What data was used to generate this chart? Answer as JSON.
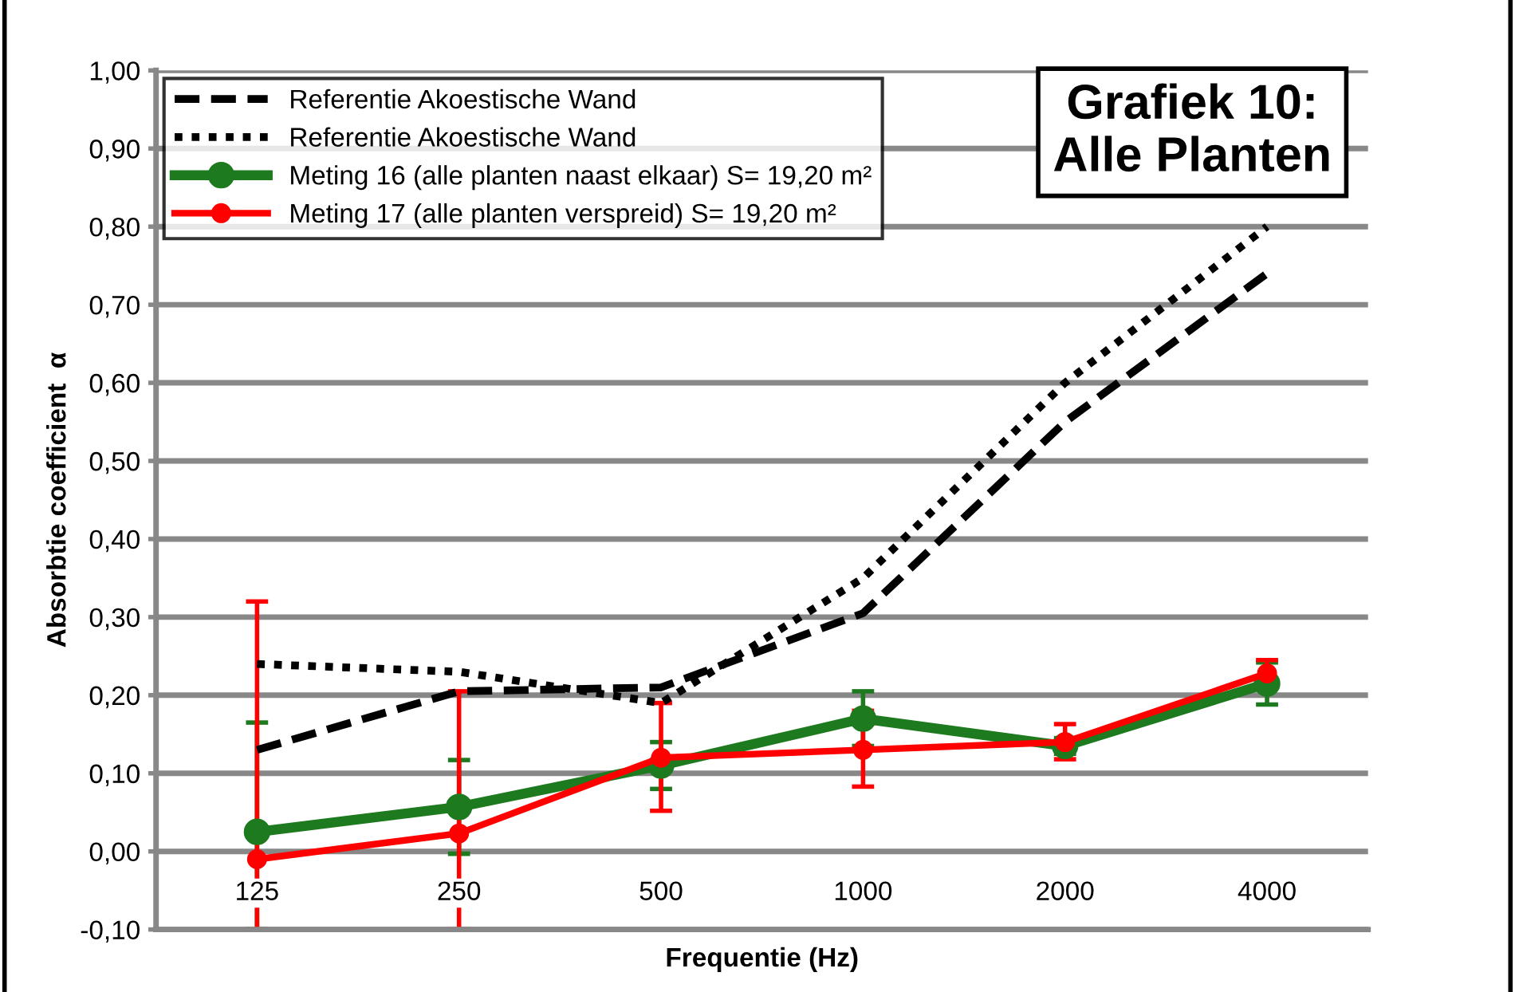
{
  "chart_data": {
    "type": "line",
    "title": "Grafiek 10:\nAlle Planten",
    "xlabel": "Frequentie (Hz)",
    "ylabel": "Absorbtie coefficient  α",
    "categories": [
      "125",
      "250",
      "500",
      "1000",
      "2000",
      "4000"
    ],
    "series": [
      {
        "name": "Referentie Akoestische Wand",
        "color": "#000000",
        "line_style": "dashed",
        "marker": "none",
        "values": [
          0.13,
          0.205,
          0.21,
          0.305,
          0.55,
          0.74
        ]
      },
      {
        "name": "Referentie Akoestische Wand",
        "color": "#000000",
        "line_style": "dotted",
        "marker": "none",
        "values": [
          0.24,
          0.23,
          0.19,
          0.35,
          0.6,
          0.8
        ]
      },
      {
        "name": "Meting 16 (alle planten naast elkaar) S= 19,20 m²",
        "color": "#1e7a1e",
        "line_style": "solid",
        "marker": "circle",
        "values": [
          0.025,
          0.057,
          0.11,
          0.17,
          0.135,
          0.215
        ],
        "errors": [
          [
            -0.1,
            0.165
          ],
          0.06,
          0.03,
          0.035,
          0.01,
          0.027
        ]
      },
      {
        "name": "Meting 17 (alle planten verspreid) S= 19,20 m²",
        "color": "#ff0000",
        "line_style": "solid",
        "marker": "circle",
        "values": [
          -0.01,
          0.023,
          0.12,
          0.13,
          0.14,
          0.228
        ],
        "errors": [
          [
            -0.1,
            0.32
          ],
          [
            -0.1,
            0.205
          ],
          [
            0.052,
            0.19
          ],
          [
            0.083,
            0.18
          ],
          [
            0.118,
            0.163
          ],
          [
            0.21,
            0.245
          ]
        ]
      }
    ],
    "ylim": [
      -0.1,
      1.0
    ],
    "yticks": [
      {
        "value": -0.1,
        "label": "-0,10"
      },
      {
        "value": 0,
        "label": "0,00"
      },
      {
        "value": 0.1,
        "label": "0,10"
      },
      {
        "value": 0.2,
        "label": "0,20"
      },
      {
        "value": 0.3,
        "label": "0,30"
      },
      {
        "value": 0.4,
        "label": "0,40"
      },
      {
        "value": 0.5,
        "label": "0,50"
      },
      {
        "value": 0.6,
        "label": "0,60"
      },
      {
        "value": 0.7,
        "label": "0,70"
      },
      {
        "value": 0.8,
        "label": "0,80"
      },
      {
        "value": 0.9,
        "label": "0,90"
      },
      {
        "value": 1.0,
        "label": "1,00"
      }
    ],
    "grid": "y",
    "legend": "top left"
  }
}
